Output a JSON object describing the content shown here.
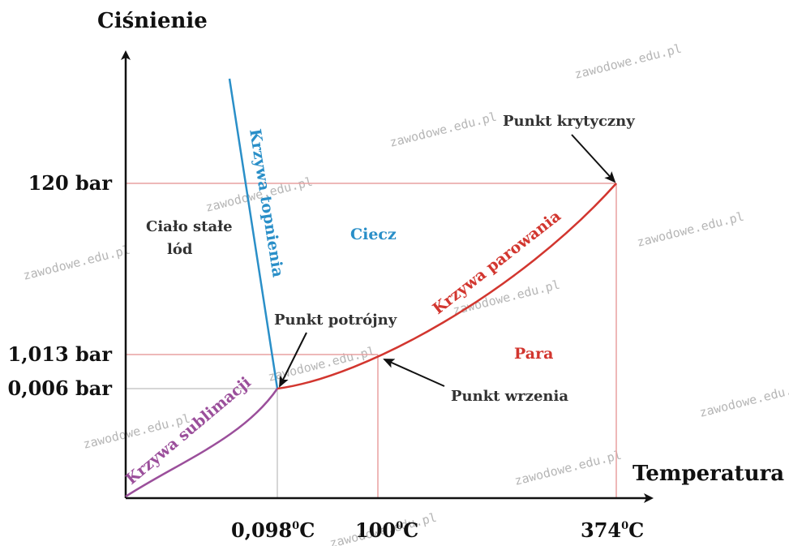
{
  "colors": {
    "axis": "#111111",
    "melting": "#2a8fc8",
    "vaporization": "#d2362f",
    "sublimation": "#9b4f9b",
    "guide_red": "#e8a0a0",
    "guide_gray": "#c8c8c8",
    "label_dark": "#333333",
    "watermark": "#b5b5b5"
  },
  "axes": {
    "y_title": "Ciśnienie",
    "x_title": "Temperatura"
  },
  "y_ticks": [
    "120 bar",
    "1,013 bar",
    "0,006 bar"
  ],
  "x_ticks": [
    {
      "base": "0,098",
      "sup": "0",
      "unit": "C"
    },
    {
      "base": "100",
      "sup": "0",
      "unit": "C"
    },
    {
      "base": "374",
      "sup": "0",
      "unit": "C"
    }
  ],
  "regions": {
    "solid_line1": "Ciało stałe",
    "solid_line2": "lód",
    "liquid": "Ciecz",
    "vapor": "Para"
  },
  "curves": {
    "melting": "Krzywa topnienia",
    "vaporization": "Krzywa parowania",
    "sublimation": "Krzywa sublimacji"
  },
  "points": {
    "critical": "Punkt krytyczny",
    "triple": "Punkt potrójny",
    "boiling": "Punkt wrzenia"
  },
  "watermark": "zawodowe.edu.pl"
}
